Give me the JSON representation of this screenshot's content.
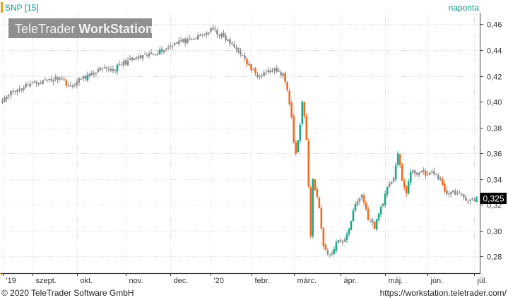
{
  "header": {
    "symbol": "SNP [15]",
    "period": "naponta",
    "watermark_light": "TeleTrader ",
    "watermark_bold": "WorkStation"
  },
  "footer": {
    "copyright": "© 2020 TeleTrader Software GmbH",
    "url": "https://workstation.teletrader.com/"
  },
  "colors": {
    "up": "#1aa889",
    "down": "#f06a1c",
    "neutral": "#8c8c8c",
    "accent": "#e8a317",
    "header_text": "#0a9a8a",
    "grid": "#d6d6d6"
  },
  "chart_data": {
    "type": "candlestick",
    "x_labels": [
      {
        "pos": 0,
        "label": "'19"
      },
      {
        "pos": 14,
        "label": "szept."
      },
      {
        "pos": 35,
        "label": "okt."
      },
      {
        "pos": 58,
        "label": "nov."
      },
      {
        "pos": 79,
        "label": "dec."
      },
      {
        "pos": 98,
        "label": "'20"
      },
      {
        "pos": 117,
        "label": "febr."
      },
      {
        "pos": 137,
        "label": "márc."
      },
      {
        "pos": 159,
        "label": "ápr."
      },
      {
        "pos": 180,
        "label": "máj."
      },
      {
        "pos": 200,
        "label": "jún."
      },
      {
        "pos": 222,
        "label": "júl."
      }
    ],
    "y_ticks": [
      0.28,
      0.3,
      0.32,
      0.34,
      0.36,
      0.38,
      0.4,
      0.42,
      0.44,
      0.46
    ],
    "y_tick_labels": [
      "0,28",
      "0,30",
      "0,32",
      "0,34",
      "0,36",
      "0,38",
      "0,40",
      "0,42",
      "0,44",
      "0,46"
    ],
    "ylim": [
      0.267,
      0.469
    ],
    "last_value": 0.325,
    "last_value_label": "0,325",
    "grid": true,
    "anchors": [
      [
        0,
        0.402
      ],
      [
        4,
        0.407
      ],
      [
        8,
        0.41
      ],
      [
        12,
        0.414
      ],
      [
        17,
        0.415
      ],
      [
        22,
        0.417
      ],
      [
        27,
        0.419
      ],
      [
        32,
        0.411
      ],
      [
        37,
        0.418
      ],
      [
        42,
        0.421
      ],
      [
        46,
        0.425
      ],
      [
        52,
        0.425
      ],
      [
        57,
        0.43
      ],
      [
        62,
        0.433
      ],
      [
        67,
        0.435
      ],
      [
        72,
        0.438
      ],
      [
        77,
        0.441
      ],
      [
        82,
        0.447
      ],
      [
        88,
        0.447
      ],
      [
        93,
        0.451
      ],
      [
        99,
        0.456
      ],
      [
        104,
        0.45
      ],
      [
        108,
        0.444
      ],
      [
        112,
        0.438
      ],
      [
        114,
        0.432
      ],
      [
        117,
        0.425
      ],
      [
        120,
        0.421
      ],
      [
        124,
        0.423
      ],
      [
        128,
        0.424
      ],
      [
        132,
        0.421
      ],
      [
        134,
        0.41
      ],
      [
        136,
        0.388
      ],
      [
        137,
        0.368
      ],
      [
        138,
        0.36
      ],
      [
        140,
        0.382
      ],
      [
        141,
        0.4
      ],
      [
        142,
        0.39
      ],
      [
        143,
        0.37
      ],
      [
        145,
        0.296
      ],
      [
        146,
        0.34
      ],
      [
        149,
        0.318
      ],
      [
        151,
        0.288
      ],
      [
        153,
        0.283
      ],
      [
        155,
        0.28
      ],
      [
        157,
        0.292
      ],
      [
        160,
        0.29
      ],
      [
        163,
        0.302
      ],
      [
        166,
        0.32
      ],
      [
        169,
        0.328
      ],
      [
        172,
        0.31
      ],
      [
        175,
        0.303
      ],
      [
        178,
        0.318
      ],
      [
        181,
        0.332
      ],
      [
        184,
        0.342
      ],
      [
        186,
        0.36
      ],
      [
        188,
        0.338
      ],
      [
        190,
        0.33
      ],
      [
        192,
        0.345
      ],
      [
        196,
        0.345
      ],
      [
        200,
        0.344
      ],
      [
        204,
        0.344
      ],
      [
        207,
        0.335
      ],
      [
        209,
        0.328
      ],
      [
        212,
        0.33
      ],
      [
        214,
        0.329
      ],
      [
        217,
        0.325
      ],
      [
        220,
        0.323
      ],
      [
        223,
        0.325
      ]
    ]
  }
}
